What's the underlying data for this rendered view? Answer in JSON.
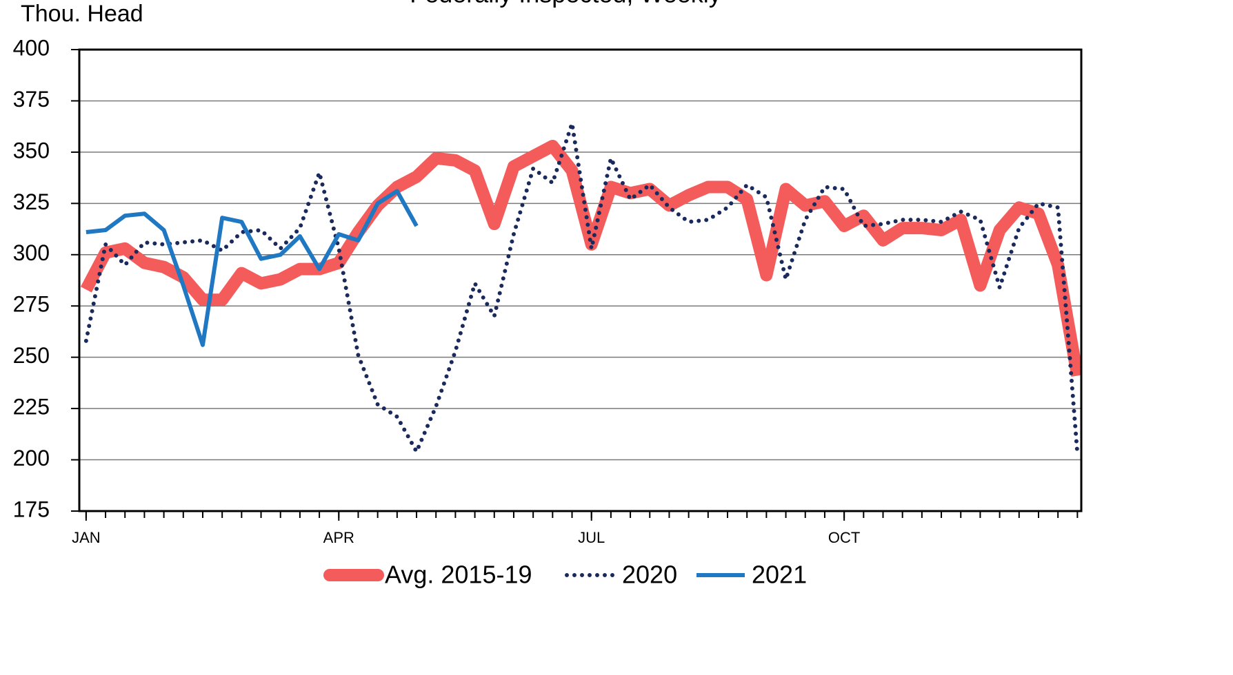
{
  "chart_data": {
    "type": "line",
    "title": "Federally Inspected, Weekly",
    "ylabel": "Thou. Head",
    "x": [
      1,
      2,
      3,
      4,
      5,
      6,
      7,
      8,
      9,
      10,
      11,
      12,
      13,
      14,
      15,
      16,
      17,
      18,
      19,
      20,
      21,
      22,
      23,
      24,
      25,
      26,
      27,
      28,
      29,
      30,
      31,
      32,
      33,
      34,
      35,
      36,
      37,
      38,
      39,
      40,
      41,
      42,
      43,
      44,
      45,
      46,
      47,
      48,
      49,
      50,
      51,
      52
    ],
    "xlim": [
      0.65,
      52.2
    ],
    "xticks": [
      {
        "value": 1,
        "label": "JAN"
      },
      {
        "value": 14,
        "label": "APR"
      },
      {
        "value": 27,
        "label": "JUL"
      },
      {
        "value": 40,
        "label": "OCT"
      }
    ],
    "ylim": [
      175,
      400
    ],
    "yticks": [
      175,
      200,
      225,
      250,
      275,
      300,
      325,
      350,
      375,
      400
    ],
    "grid": true,
    "legend": "bottom",
    "series": [
      {
        "name": "Avg. 2015-19",
        "color": "#f45b5b",
        "style": "thick",
        "values": [
          283,
          301,
          303,
          296,
          294,
          289,
          278,
          278,
          291,
          286,
          288,
          293,
          293,
          296,
          311,
          324,
          333,
          338,
          347,
          346,
          341,
          315,
          343,
          348,
          353,
          341,
          305,
          333,
          330,
          332,
          324,
          329,
          333,
          333,
          327,
          290,
          332,
          324,
          326,
          314,
          319,
          307,
          313,
          313,
          312,
          317,
          285,
          312,
          323,
          320,
          295,
          241
        ]
      },
      {
        "name": "2020",
        "color": "#1b2a5c",
        "style": "dotted",
        "values": [
          258,
          305,
          295,
          306,
          305,
          306,
          307,
          302,
          311,
          312,
          303,
          313,
          340,
          303,
          251,
          227,
          221,
          204,
          226,
          253,
          286,
          270,
          310,
          342,
          335,
          364,
          303,
          347,
          327,
          334,
          323,
          316,
          317,
          323,
          334,
          328,
          288,
          317,
          333,
          332,
          314,
          315,
          317,
          317,
          316,
          321,
          317,
          284,
          313,
          325,
          323,
          203
        ]
      },
      {
        "name": "2021",
        "color": "#1f78c1",
        "style": "solid",
        "values": [
          311,
          312,
          319,
          320,
          312,
          285,
          256,
          318,
          316,
          298,
          300,
          309,
          293,
          310,
          307,
          325,
          331,
          314,
          null,
          null,
          null,
          null,
          null,
          null,
          null,
          null,
          null,
          null,
          null,
          null,
          null,
          null,
          null,
          null,
          null,
          null,
          null,
          null,
          null,
          null,
          null,
          null,
          null,
          null,
          null,
          null,
          null,
          null,
          null,
          null,
          null,
          null
        ]
      }
    ]
  }
}
